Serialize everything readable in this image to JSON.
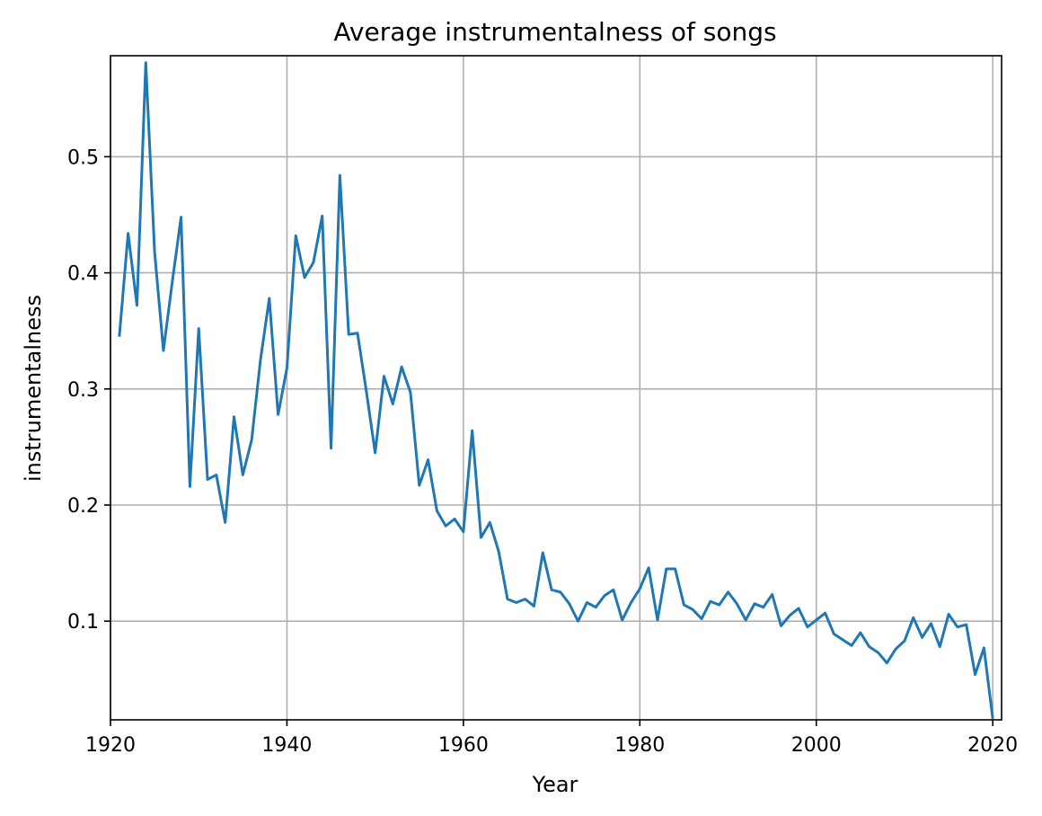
{
  "chart_data": {
    "type": "line",
    "title": "Average instrumentalness of songs",
    "xlabel": "Year",
    "ylabel": "instrumentalness",
    "xlim": [
      1920,
      2021
    ],
    "ylim": [
      0.015,
      0.587
    ],
    "xticks": [
      1920,
      1940,
      1960,
      1980,
      2000,
      2020
    ],
    "yticks": [
      0.1,
      0.2,
      0.3,
      0.4,
      0.5
    ],
    "ytick_labels": [
      "0.1",
      "0.2",
      "0.3",
      "0.4",
      "0.5"
    ],
    "grid": true,
    "line_color": "#1f77b4",
    "series": [
      {
        "x": [
          1921,
          1922,
          1923,
          1924,
          1925,
          1926,
          1927,
          1928,
          1929,
          1930,
          1931,
          1932,
          1933,
          1934,
          1935,
          1936,
          1937,
          1938,
          1939,
          1940,
          1941,
          1942,
          1943,
          1944,
          1945,
          1946,
          1947,
          1948,
          1949,
          1950,
          1951,
          1952,
          1953,
          1954,
          1955,
          1956,
          1957,
          1958,
          1959,
          1960,
          1961,
          1962,
          1963,
          1964,
          1965,
          1966,
          1967,
          1968,
          1969,
          1970,
          1971,
          1972,
          1973,
          1974,
          1975,
          1976,
          1977,
          1978,
          1979,
          1980,
          1981,
          1982,
          1983,
          1984,
          1985,
          1986,
          1987,
          1988,
          1989,
          1990,
          1991,
          1992,
          1993,
          1994,
          1995,
          1996,
          1997,
          1998,
          1999,
          2000,
          2001,
          2002,
          2003,
          2004,
          2005,
          2006,
          2007,
          2008,
          2009,
          2010,
          2011,
          2012,
          2013,
          2014,
          2015,
          2016,
          2017,
          2018,
          2019,
          2020
        ],
        "values": [
          0.345,
          0.434,
          0.372,
          0.581,
          0.418,
          0.333,
          0.392,
          0.448,
          0.216,
          0.352,
          0.222,
          0.226,
          0.185,
          0.276,
          0.226,
          0.256,
          0.325,
          0.378,
          0.278,
          0.318,
          0.432,
          0.396,
          0.409,
          0.449,
          0.249,
          0.484,
          0.347,
          0.348,
          0.298,
          0.245,
          0.311,
          0.287,
          0.319,
          0.297,
          0.217,
          0.239,
          0.195,
          0.182,
          0.188,
          0.177,
          0.264,
          0.172,
          0.185,
          0.16,
          0.119,
          0.116,
          0.119,
          0.113,
          0.159,
          0.127,
          0.125,
          0.115,
          0.1,
          0.116,
          0.112,
          0.122,
          0.127,
          0.101,
          0.116,
          0.128,
          0.146,
          0.101,
          0.145,
          0.145,
          0.114,
          0.11,
          0.102,
          0.117,
          0.114,
          0.125,
          0.115,
          0.101,
          0.115,
          0.112,
          0.123,
          0.096,
          0.105,
          0.111,
          0.095,
          0.101,
          0.107,
          0.089,
          0.084,
          0.079,
          0.09,
          0.078,
          0.073,
          0.064,
          0.076,
          0.083,
          0.103,
          0.086,
          0.098,
          0.078,
          0.106,
          0.095,
          0.097,
          0.054,
          0.077,
          0.016
        ]
      }
    ]
  }
}
